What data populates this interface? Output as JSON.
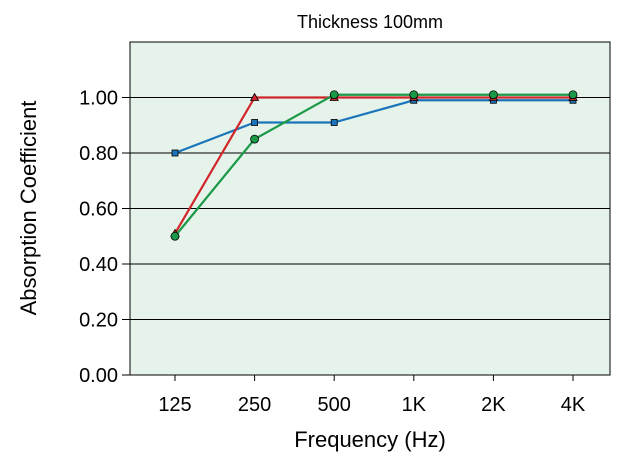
{
  "chart_data": {
    "type": "line",
    "title": "Thickness 100mm",
    "xlabel": "Frequency (Hz)",
    "ylabel": "Absorption Coefficient",
    "categories": [
      "125",
      "250",
      "500",
      "1K",
      "2K",
      "4K"
    ],
    "ylim": [
      0,
      1.2
    ],
    "yticks": [
      "0.00",
      "0.20",
      "0.40",
      "0.60",
      "0.80",
      "1.00"
    ],
    "grid": true,
    "legend": "none",
    "background_color": "#e6f3ea",
    "series": [
      {
        "color": "#1b75bb",
        "marker": "square",
        "values": [
          0.8,
          0.91,
          0.91,
          0.99,
          0.99,
          0.99
        ]
      },
      {
        "color": "#d1262b",
        "marker": "triangle",
        "values": [
          0.51,
          1.0,
          1.0,
          1.0,
          1.0,
          1.0
        ]
      },
      {
        "color": "#1a9a48",
        "marker": "circle",
        "values": [
          0.5,
          0.85,
          1.01,
          1.01,
          1.01,
          1.01
        ]
      }
    ]
  }
}
